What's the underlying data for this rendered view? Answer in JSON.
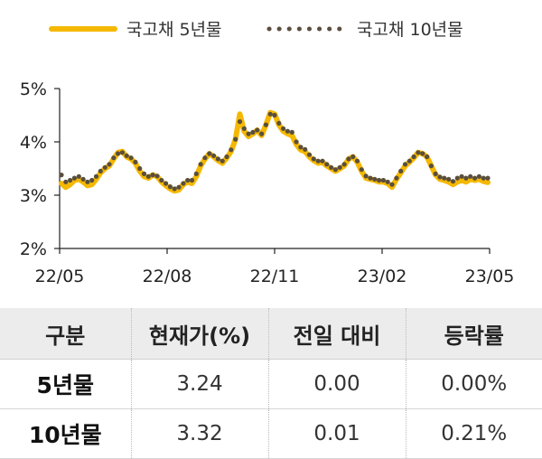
{
  "chart_data": {
    "type": "line",
    "ylim": [
      2,
      5
    ],
    "yticks": [
      "2%",
      "3%",
      "4%",
      "5%"
    ],
    "xticks": [
      "22/05",
      "22/08",
      "22/11",
      "23/02",
      "23/05"
    ],
    "series": [
      {
        "name": "국고채 5년물",
        "color": "#f5b800",
        "values": [
          3.22,
          3.15,
          3.2,
          3.28,
          3.3,
          3.25,
          3.18,
          3.2,
          3.3,
          3.42,
          3.5,
          3.55,
          3.68,
          3.8,
          3.82,
          3.72,
          3.68,
          3.6,
          3.45,
          3.35,
          3.32,
          3.38,
          3.35,
          3.25,
          3.18,
          3.12,
          3.08,
          3.1,
          3.2,
          3.25,
          3.22,
          3.35,
          3.55,
          3.68,
          3.78,
          3.72,
          3.65,
          3.6,
          3.7,
          3.82,
          4.05,
          4.52,
          4.2,
          4.1,
          4.15,
          4.22,
          4.12,
          4.32,
          4.55,
          4.52,
          4.32,
          4.2,
          4.15,
          4.12,
          3.95,
          3.85,
          3.82,
          3.72,
          3.65,
          3.6,
          3.62,
          3.55,
          3.5,
          3.45,
          3.5,
          3.55,
          3.68,
          3.72,
          3.62,
          3.45,
          3.32,
          3.3,
          3.28,
          3.25,
          3.25,
          3.22,
          3.15,
          3.3,
          3.42,
          3.55,
          3.62,
          3.7,
          3.8,
          3.78,
          3.72,
          3.55,
          3.38,
          3.3,
          3.28,
          3.25,
          3.2,
          3.25,
          3.28,
          3.25,
          3.3,
          3.28,
          3.3,
          3.26,
          3.24
        ],
        "last": "3.24",
        "change": "0.00",
        "pct": "0.00%",
        "label": "5년물"
      },
      {
        "name": "국고채 10년물",
        "color": "#5a4e3c",
        "values": [
          3.38,
          3.25,
          3.28,
          3.32,
          3.35,
          3.3,
          3.25,
          3.28,
          3.35,
          3.45,
          3.52,
          3.58,
          3.7,
          3.78,
          3.8,
          3.74,
          3.7,
          3.62,
          3.5,
          3.4,
          3.35,
          3.38,
          3.36,
          3.28,
          3.22,
          3.16,
          3.12,
          3.15,
          3.22,
          3.28,
          3.28,
          3.4,
          3.58,
          3.7,
          3.78,
          3.74,
          3.68,
          3.64,
          3.72,
          3.85,
          4.05,
          4.38,
          4.25,
          4.15,
          4.18,
          4.22,
          4.15,
          4.32,
          4.52,
          4.5,
          4.35,
          4.25,
          4.2,
          4.18,
          4.0,
          3.9,
          3.86,
          3.76,
          3.68,
          3.64,
          3.64,
          3.58,
          3.52,
          3.48,
          3.52,
          3.58,
          3.68,
          3.72,
          3.64,
          3.48,
          3.36,
          3.32,
          3.3,
          3.28,
          3.28,
          3.25,
          3.2,
          3.32,
          3.45,
          3.58,
          3.64,
          3.72,
          3.8,
          3.78,
          3.72,
          3.55,
          3.4,
          3.34,
          3.32,
          3.3,
          3.26,
          3.32,
          3.35,
          3.32,
          3.35,
          3.32,
          3.35,
          3.32,
          3.32
        ],
        "last": "3.32",
        "change": "0.01",
        "pct": "0.21%",
        "label": "10년물"
      }
    ]
  },
  "table": {
    "headers": [
      "구분",
      "현재가(%)",
      "전일 대비",
      "등락률"
    ]
  }
}
